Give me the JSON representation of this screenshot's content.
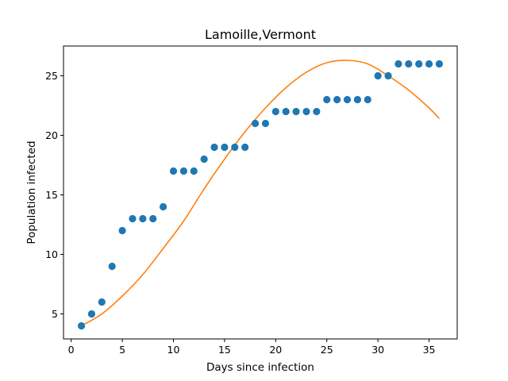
{
  "chart_data": {
    "type": "scatter",
    "title": "Lamoille,Vermont",
    "xlabel": "Days since infection",
    "ylabel": "Population infected",
    "xlim": [
      -0.75,
      37.75
    ],
    "ylim": [
      2.9,
      27.5
    ],
    "xticks": [
      0,
      5,
      10,
      15,
      20,
      25,
      30,
      35
    ],
    "yticks": [
      5,
      10,
      15,
      20,
      25
    ],
    "grid": false,
    "series": [
      {
        "kind": "scatter",
        "color": "#1f77b4",
        "x": [
          1,
          2,
          3,
          4,
          5,
          6,
          7,
          8,
          9,
          10,
          11,
          12,
          13,
          14,
          15,
          16,
          17,
          18,
          19,
          20,
          21,
          22,
          23,
          24,
          25,
          26,
          27,
          28,
          29,
          30,
          31,
          32,
          33,
          34,
          35,
          36
        ],
        "y": [
          4,
          5,
          6,
          9,
          12,
          13,
          13,
          13,
          14,
          17,
          17,
          17,
          18,
          19,
          19,
          19,
          19,
          21,
          21,
          22,
          22,
          22,
          22,
          22,
          23,
          23,
          23,
          23,
          23,
          25,
          25,
          26,
          26,
          26,
          26,
          26
        ]
      },
      {
        "kind": "line",
        "color": "#ff7f0e",
        "x": [
          1,
          3,
          5,
          7,
          9,
          11,
          13,
          15,
          17,
          19,
          21,
          23,
          25,
          27,
          29,
          31,
          33,
          35,
          36
        ],
        "y": [
          4.0,
          5.0,
          6.5,
          8.3,
          10.5,
          12.8,
          15.5,
          18.0,
          20.3,
          22.3,
          24.0,
          25.3,
          26.1,
          26.3,
          26.0,
          25.0,
          23.8,
          22.3,
          21.4
        ]
      }
    ]
  }
}
